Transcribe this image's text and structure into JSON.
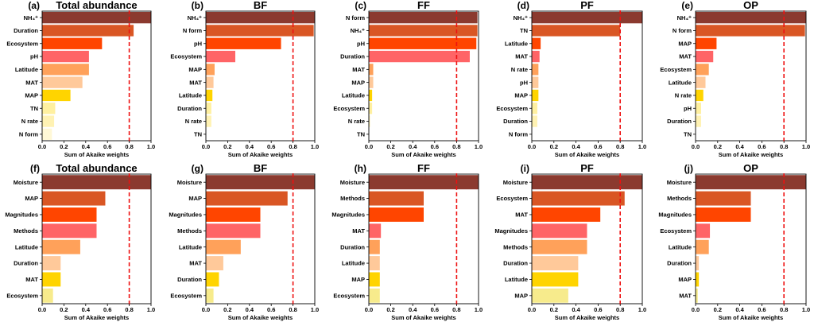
{
  "threshold": 0.8,
  "colors": {
    "threshold_line": "#ee1111",
    "bar_ramp": [
      "#8b3a2f",
      "#d95624",
      "#ff4500",
      "#ff6466",
      "#ffa15a",
      "#ffc99a",
      "#ffd400",
      "#fff0a0",
      "#fff2b3",
      "#fff8d6"
    ]
  },
  "chart_data": [
    {
      "type": "bar",
      "orientation": "horizontal",
      "letter": "(a)",
      "title": "Total abundance",
      "xlabel": "Sum of Akaike weights",
      "xlim": [
        0,
        1.0
      ],
      "xticks": [
        "0.0",
        "0.2",
        "0.4",
        "0.6",
        "0.8",
        "1.0"
      ],
      "categories": [
        "NH₄⁺",
        "Duration",
        "Ecosystem",
        "pH",
        "Latitude",
        "MAT",
        "MAP",
        "TN",
        "N rate",
        "N form"
      ],
      "values": [
        1.0,
        0.84,
        0.55,
        0.43,
        0.43,
        0.37,
        0.26,
        0.12,
        0.11,
        0.09
      ],
      "colors": [
        "#8b3a2f",
        "#d95624",
        "#ff4500",
        "#ff6466",
        "#ffa15a",
        "#ffc99a",
        "#ffd400",
        "#fff0a0",
        "#fff2b3",
        "#fff8d6"
      ]
    },
    {
      "type": "bar",
      "orientation": "horizontal",
      "letter": "(b)",
      "title": "BF",
      "xlabel": "Sum of Akaike weights",
      "xlim": [
        0,
        1.0
      ],
      "xticks": [
        "0.0",
        "0.2",
        "0.4",
        "0.6",
        "0.8",
        "1.0"
      ],
      "categories": [
        "NH₄⁺",
        "N form",
        "pH",
        "Ecosystem",
        "MAP",
        "MAT",
        "Latitude",
        "Duration",
        "N rate",
        "TN"
      ],
      "values": [
        1.0,
        0.99,
        0.69,
        0.27,
        0.08,
        0.07,
        0.06,
        0.05,
        0.05,
        0.0
      ],
      "colors": [
        "#8b3a2f",
        "#d95624",
        "#ff4500",
        "#ff6466",
        "#ffa15a",
        "#ffc99a",
        "#ffd400",
        "#fff0a0",
        "#fff2b3",
        "#fff8d6"
      ]
    },
    {
      "type": "bar",
      "orientation": "horizontal",
      "letter": "(c)",
      "title": "FF",
      "xlabel": "Sum of Akaike weights",
      "xlim": [
        0,
        1.0
      ],
      "xticks": [
        "0.0",
        "0.2",
        "0.4",
        "0.6",
        "0.8",
        "1.0"
      ],
      "categories": [
        "N form",
        "NH₄⁺",
        "pH",
        "Duration",
        "MAT",
        "MAP",
        "Latitude",
        "Ecosystem",
        "N rate",
        "TN"
      ],
      "values": [
        0.99,
        0.99,
        0.98,
        0.92,
        0.04,
        0.04,
        0.03,
        0.03,
        0.01,
        0.0
      ],
      "colors": [
        "#8b3a2f",
        "#d95624",
        "#ff4500",
        "#ff6466",
        "#ffa15a",
        "#ffc99a",
        "#ffd400",
        "#fff0a0",
        "#fff2b3",
        "#fff8d6"
      ]
    },
    {
      "type": "bar",
      "orientation": "horizontal",
      "letter": "(d)",
      "title": "PF",
      "xlabel": "Sum of Akaike weights",
      "xlim": [
        0,
        1.0
      ],
      "xticks": [
        "0.0",
        "0.2",
        "0.4",
        "0.6",
        "0.8",
        "1.0"
      ],
      "categories": [
        "NH₄⁺",
        "TN",
        "Latitude",
        "MAT",
        "N rate",
        "pH",
        "MAP",
        "Ecosystem",
        "Duration",
        "N form"
      ],
      "values": [
        1.0,
        0.8,
        0.08,
        0.07,
        0.06,
        0.06,
        0.06,
        0.05,
        0.05,
        0.0
      ],
      "colors": [
        "#8b3a2f",
        "#d95624",
        "#ff4500",
        "#ff6466",
        "#ffa15a",
        "#ffc99a",
        "#ffd400",
        "#fff0a0",
        "#fff2b3",
        "#fff8d6"
      ]
    },
    {
      "type": "bar",
      "orientation": "horizontal",
      "letter": "(e)",
      "title": "OP",
      "xlabel": "Sum of Akaike weights",
      "xlim": [
        0,
        1.0
      ],
      "xticks": [
        "0.0",
        "0.2",
        "0.4",
        "0.6",
        "0.8",
        "1.0"
      ],
      "categories": [
        "NH₄⁺",
        "N form",
        "MAP",
        "MAT",
        "Ecosystem",
        "Latitude",
        "N rate",
        "pH",
        "Duration",
        "TN"
      ],
      "values": [
        1.0,
        0.99,
        0.19,
        0.16,
        0.12,
        0.09,
        0.07,
        0.05,
        0.05,
        0.0
      ],
      "colors": [
        "#8b3a2f",
        "#d95624",
        "#ff4500",
        "#ff6466",
        "#ffa15a",
        "#ffc99a",
        "#ffd400",
        "#fff0a0",
        "#fff2b3",
        "#fff8d6"
      ]
    },
    {
      "type": "bar",
      "orientation": "horizontal",
      "letter": "(f)",
      "title": "Total abundance",
      "xlabel": "Sum of Akaike weights",
      "xlim": [
        0,
        1.0
      ],
      "xticks": [
        "0.0",
        "0.2",
        "0.4",
        "0.6",
        "0.8",
        "1.0"
      ],
      "categories": [
        "Moisture",
        "MAP",
        "Magnitudes",
        "Methods",
        "Latitude",
        "Duration",
        "MAT",
        "Ecosystem"
      ],
      "values": [
        1.0,
        0.58,
        0.5,
        0.5,
        0.35,
        0.17,
        0.17,
        0.1
      ],
      "colors": [
        "#8b3a2f",
        "#d95624",
        "#ff4500",
        "#ff6466",
        "#ffa15a",
        "#ffc99a",
        "#ffd400",
        "#f7eb8c"
      ]
    },
    {
      "type": "bar",
      "orientation": "horizontal",
      "letter": "(g)",
      "title": "BF",
      "xlabel": "Sum of Akaike weights",
      "xlim": [
        0,
        1.0
      ],
      "xticks": [
        "0.0",
        "0.2",
        "0.4",
        "0.6",
        "0.8",
        "1.0"
      ],
      "categories": [
        "Moisture",
        "MAP",
        "Magnitudes",
        "Methods",
        "Latitude",
        "MAT",
        "Duration",
        "Ecosystem"
      ],
      "values": [
        1.0,
        0.75,
        0.5,
        0.5,
        0.32,
        0.16,
        0.12,
        0.07
      ],
      "colors": [
        "#8b3a2f",
        "#d95624",
        "#ff4500",
        "#ff6466",
        "#ffa15a",
        "#ffc99a",
        "#ffd400",
        "#f7eb8c"
      ]
    },
    {
      "type": "bar",
      "orientation": "horizontal",
      "letter": "(h)",
      "title": "FF",
      "xlabel": "Sum of Akaike weights",
      "xlim": [
        0,
        1.0
      ],
      "xticks": [
        "0.0",
        "0.2",
        "0.4",
        "0.6",
        "0.8",
        "1.0"
      ],
      "categories": [
        "Moisture",
        "Methods",
        "Magnitudes",
        "MAT",
        "Duration",
        "Latitude",
        "MAP",
        "Ecosystem"
      ],
      "values": [
        1.0,
        0.5,
        0.5,
        0.11,
        0.1,
        0.1,
        0.1,
        0.1
      ],
      "colors": [
        "#8b3a2f",
        "#d95624",
        "#ff4500",
        "#ff6466",
        "#ffa15a",
        "#ffc99a",
        "#ffd400",
        "#f7eb8c"
      ]
    },
    {
      "type": "bar",
      "orientation": "horizontal",
      "letter": "(i)",
      "title": "PF",
      "xlabel": "Sum of Akaike weights",
      "xlim": [
        0,
        1.0
      ],
      "xticks": [
        "0.0",
        "0.2",
        "0.4",
        "0.6",
        "0.8",
        "1.0"
      ],
      "categories": [
        "Moisture",
        "Ecosystem",
        "MAT",
        "Magnitudes",
        "Methods",
        "Duration",
        "Latitude",
        "MAP"
      ],
      "values": [
        1.0,
        0.84,
        0.62,
        0.5,
        0.5,
        0.42,
        0.42,
        0.33
      ],
      "colors": [
        "#8b3a2f",
        "#d95624",
        "#ff4500",
        "#ff6466",
        "#ffa15a",
        "#ffc99a",
        "#ffd400",
        "#f7eb8c"
      ]
    },
    {
      "type": "bar",
      "orientation": "horizontal",
      "letter": "(j)",
      "title": "OP",
      "xlabel": "Sum of Akaike weights",
      "xlim": [
        0,
        1.0
      ],
      "xticks": [
        "0.0",
        "0.2",
        "0.4",
        "0.6",
        "0.8",
        "1.0"
      ],
      "categories": [
        "Moisture",
        "Methods",
        "Magnitudes",
        "Ecosystem",
        "Latitude",
        "Duration",
        "MAP",
        "MAT"
      ],
      "values": [
        1.0,
        0.5,
        0.5,
        0.13,
        0.12,
        0.03,
        0.03,
        0.02
      ],
      "colors": [
        "#8b3a2f",
        "#d95624",
        "#ff4500",
        "#ff6466",
        "#ffa15a",
        "#ffc99a",
        "#ffd400",
        "#f7eb8c"
      ]
    }
  ]
}
